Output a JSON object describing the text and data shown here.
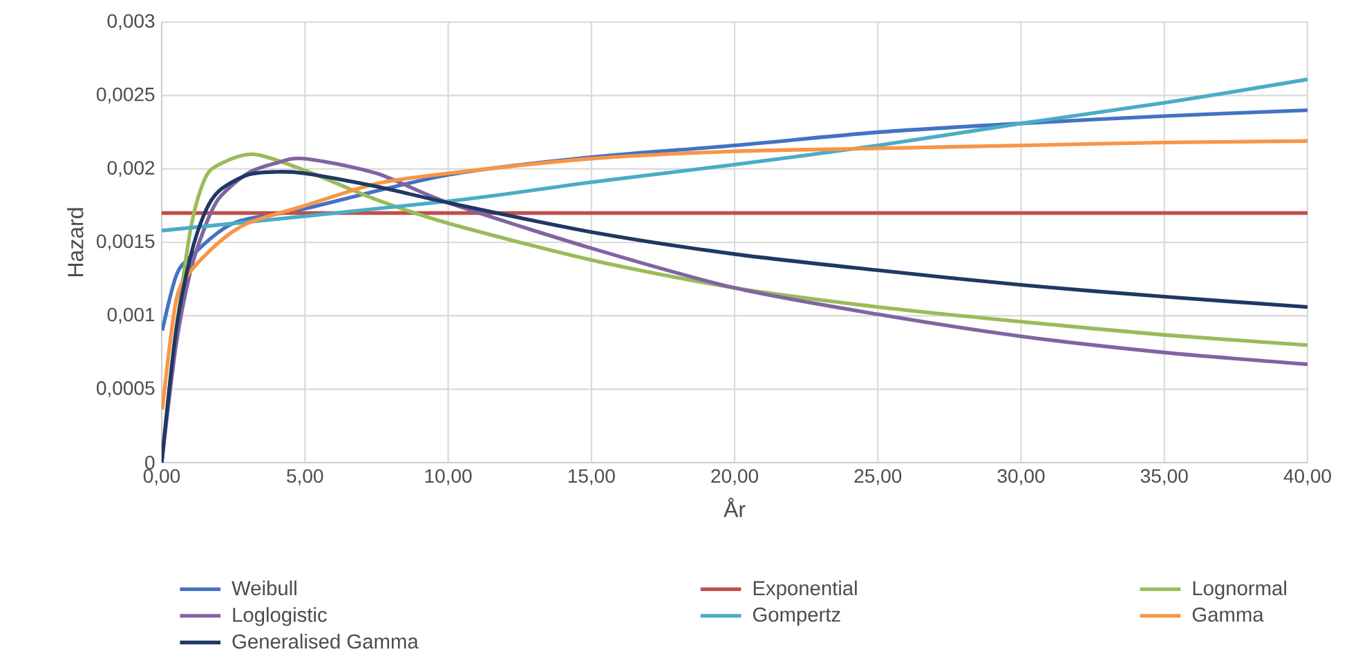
{
  "chart_data": {
    "type": "line",
    "xlabel": "År",
    "ylabel": "Hazard",
    "xlim": [
      0,
      40
    ],
    "ylim": [
      0,
      0.003
    ],
    "xticks": [
      {
        "value": 0,
        "label": "0,00"
      },
      {
        "value": 5,
        "label": "5,00"
      },
      {
        "value": 10,
        "label": "10,00"
      },
      {
        "value": 15,
        "label": "15,00"
      },
      {
        "value": 20,
        "label": "20,00"
      },
      {
        "value": 25,
        "label": "25,00"
      },
      {
        "value": 30,
        "label": "30,00"
      },
      {
        "value": 35,
        "label": "35,00"
      },
      {
        "value": 40,
        "label": "40,00"
      }
    ],
    "yticks": [
      0,
      {
        "value": 0.0005,
        "label": "0,0005"
      },
      {
        "value": 0.001,
        "label": "0,001"
      },
      {
        "value": 0.0015,
        "label": "0,0015"
      },
      {
        "value": 0.002,
        "label": "0,002"
      },
      {
        "value": 0.0025,
        "label": "0,0025"
      },
      {
        "value": 0.003,
        "label": "0,003"
      }
    ],
    "grid": true,
    "legend": "bottom",
    "marker": "none",
    "line_style": "solid",
    "series": [
      {
        "name": "Weibull",
        "color": "#4472c4",
        "x": [
          0.02,
          0.5,
          1,
          2.5,
          5,
          10,
          15,
          20,
          25,
          30,
          35,
          40
        ],
        "values": [
          0.0009,
          0.00127,
          0.0014,
          0.00163,
          0.00173,
          0.00196,
          0.00208,
          0.00216,
          0.00225,
          0.00231,
          0.00236,
          0.0024
        ]
      },
      {
        "name": "Exponential",
        "color": "#c0504d",
        "x": [
          0,
          40
        ],
        "values": [
          0.0017,
          0.0017
        ]
      },
      {
        "name": "Lognormal",
        "color": "#9bbb59",
        "x": [
          0,
          0.4,
          1,
          1.5,
          2,
          3.2,
          5,
          7.5,
          10,
          15,
          20,
          25,
          30,
          35,
          40
        ],
        "values": [
          0,
          0.00073,
          0.00158,
          0.00193,
          0.00203,
          0.0021,
          0.00199,
          0.00179,
          0.00163,
          0.00138,
          0.00119,
          0.00106,
          0.00096,
          0.00087,
          0.0008
        ]
      },
      {
        "name": "Loglogistic",
        "color": "#8064a2",
        "x": [
          0,
          0.5,
          1,
          1.5,
          2,
          3,
          4,
          5,
          7.5,
          10,
          15,
          20,
          25,
          30,
          35,
          40
        ],
        "values": [
          0,
          0.0008,
          0.0013,
          0.0016,
          0.0018,
          0.00197,
          0.00204,
          0.00207,
          0.00197,
          0.00177,
          0.00146,
          0.00119,
          0.00101,
          0.00086,
          0.00075,
          0.00067
        ]
      },
      {
        "name": "Gompertz",
        "color": "#4bacc6",
        "x": [
          0,
          10,
          15,
          20,
          25,
          30,
          35,
          40
        ],
        "values": [
          0.00158,
          0.00178,
          0.00191,
          0.00203,
          0.00216,
          0.00231,
          0.00245,
          0.00261
        ]
      },
      {
        "name": "Gamma",
        "color": "#f79646",
        "x": [
          0.02,
          0.5,
          1,
          2,
          3,
          5,
          7.5,
          10,
          15,
          20,
          25,
          30,
          35,
          40
        ],
        "values": [
          0.00036,
          0.0011,
          0.0013,
          0.0015,
          0.00163,
          0.00175,
          0.0019,
          0.00197,
          0.00207,
          0.00212,
          0.00214,
          0.00216,
          0.00218,
          0.00219
        ]
      },
      {
        "name": "Generalised Gamma",
        "color": "#1f3864",
        "x": [
          0,
          0.5,
          1,
          1.5,
          2,
          3,
          4,
          5,
          7.5,
          10,
          15,
          20,
          25,
          30,
          35,
          40
        ],
        "values": [
          0,
          0.0009,
          0.0014,
          0.0017,
          0.00185,
          0.00196,
          0.00198,
          0.00197,
          0.00188,
          0.00177,
          0.00157,
          0.00142,
          0.00131,
          0.00121,
          0.00113,
          0.00106
        ]
      }
    ]
  }
}
